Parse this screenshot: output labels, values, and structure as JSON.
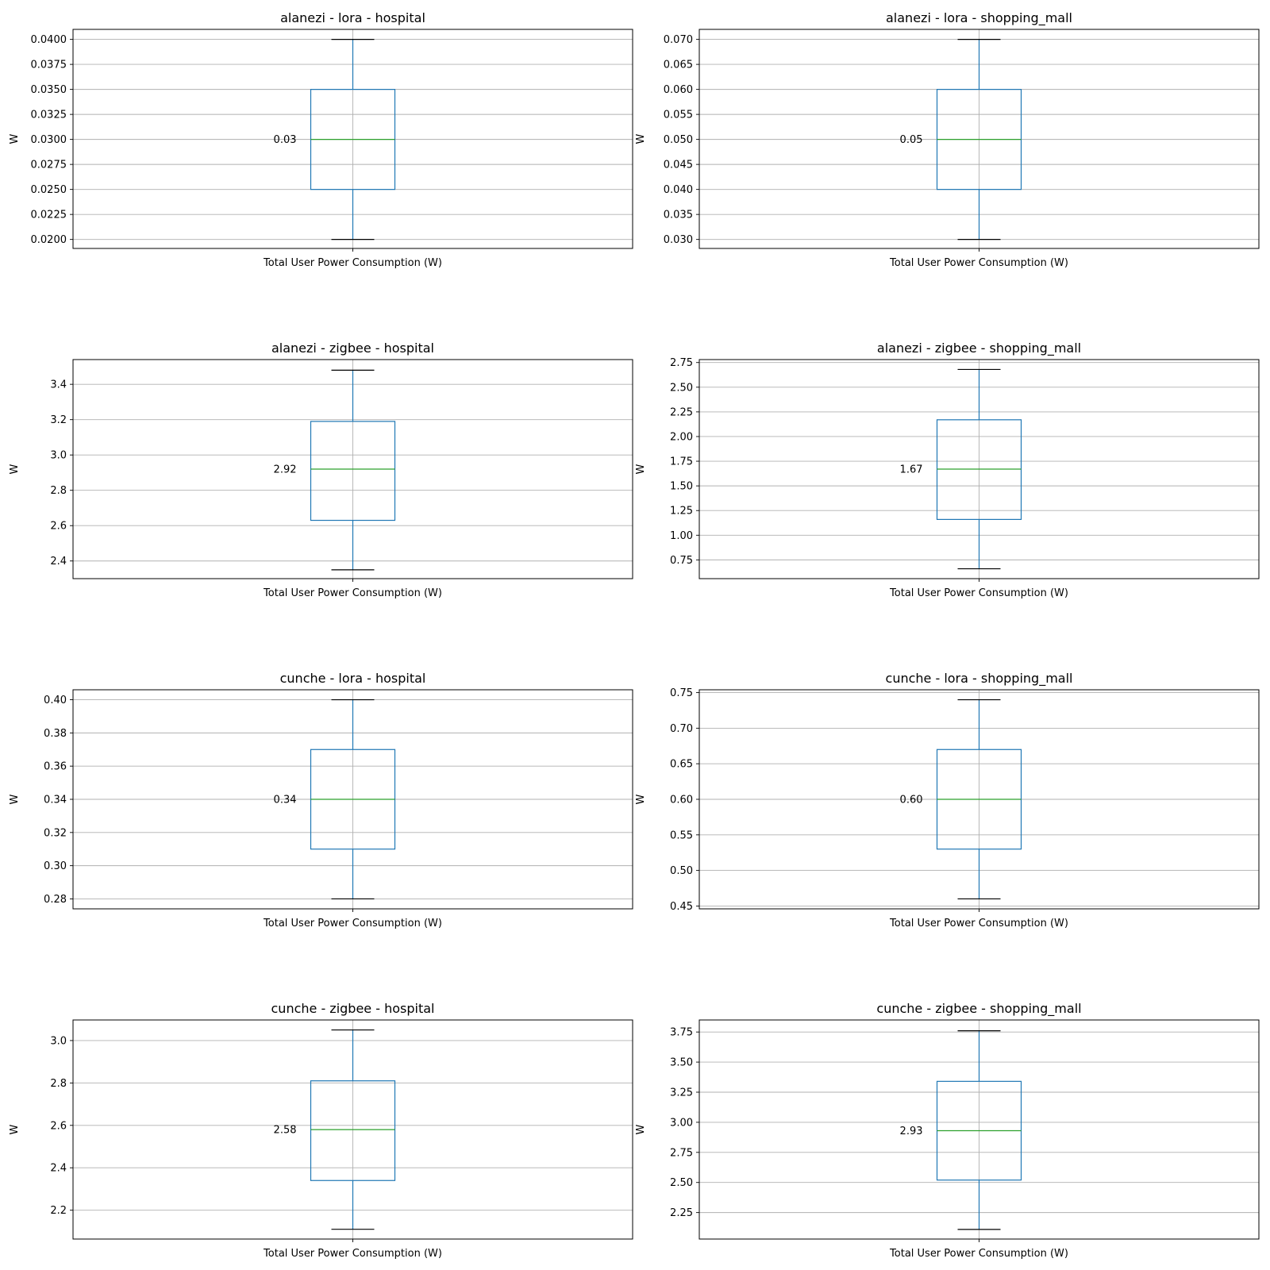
{
  "chart_data": [
    {
      "type": "box",
      "title": "alanezi - lora - hospital",
      "xlabel": "",
      "ylabel": "W",
      "categories": [
        "Total User Power Consumption (W)"
      ],
      "ylim": [
        0.0191,
        0.041
      ],
      "yticks": [
        0.02,
        0.0225,
        0.025,
        0.0275,
        0.03,
        0.0325,
        0.035,
        0.0375,
        0.04
      ],
      "ytick_labels": [
        "0.0200",
        "0.0225",
        "0.0250",
        "0.0275",
        "0.0300",
        "0.0325",
        "0.0350",
        "0.0375",
        "0.0400"
      ],
      "box": {
        "whisker_low": 0.02,
        "q1": 0.025,
        "median": 0.03,
        "q3": 0.035,
        "whisker_high": 0.04
      },
      "median_label": "0.03",
      "grid": true,
      "colors": {
        "box": "#1f77b4",
        "median": "#2ca02c",
        "cap": "#000000",
        "grid": "#b0b0b0"
      }
    },
    {
      "type": "box",
      "title": "alanezi - lora - shopping_mall",
      "xlabel": "",
      "ylabel": "W",
      "categories": [
        "Total User Power Consumption (W)"
      ],
      "ylim": [
        0.0282,
        0.072
      ],
      "yticks": [
        0.03,
        0.035,
        0.04,
        0.045,
        0.05,
        0.055,
        0.06,
        0.065,
        0.07
      ],
      "ytick_labels": [
        "0.030",
        "0.035",
        "0.040",
        "0.045",
        "0.050",
        "0.055",
        "0.060",
        "0.065",
        "0.070"
      ],
      "box": {
        "whisker_low": 0.03,
        "q1": 0.04,
        "median": 0.05,
        "q3": 0.06,
        "whisker_high": 0.07
      },
      "median_label": "0.05",
      "grid": true,
      "colors": {
        "box": "#1f77b4",
        "median": "#2ca02c",
        "cap": "#000000",
        "grid": "#b0b0b0"
      }
    },
    {
      "type": "box",
      "title": "alanezi - zigbee - hospital",
      "xlabel": "",
      "ylabel": "W",
      "categories": [
        "Total User Power Consumption (W)"
      ],
      "ylim": [
        2.3,
        3.54
      ],
      "yticks": [
        2.4,
        2.6,
        2.8,
        3.0,
        3.2,
        3.4
      ],
      "ytick_labels": [
        "2.4",
        "2.6",
        "2.8",
        "3.0",
        "3.2",
        "3.4"
      ],
      "box": {
        "whisker_low": 2.35,
        "q1": 2.63,
        "median": 2.92,
        "q3": 3.19,
        "whisker_high": 3.48
      },
      "median_label": "2.92",
      "grid": true,
      "colors": {
        "box": "#1f77b4",
        "median": "#2ca02c",
        "cap": "#000000",
        "grid": "#b0b0b0"
      }
    },
    {
      "type": "box",
      "title": "alanezi - zigbee - shopping_mall",
      "xlabel": "",
      "ylabel": "W",
      "categories": [
        "Total User Power Consumption (W)"
      ],
      "ylim": [
        0.56,
        2.78
      ],
      "yticks": [
        0.75,
        1.0,
        1.25,
        1.5,
        1.75,
        2.0,
        2.25,
        2.5,
        2.75
      ],
      "ytick_labels": [
        "0.75",
        "1.00",
        "1.25",
        "1.50",
        "1.75",
        "2.00",
        "2.25",
        "2.50",
        "2.75"
      ],
      "box": {
        "whisker_low": 0.66,
        "q1": 1.16,
        "median": 1.67,
        "q3": 2.17,
        "whisker_high": 2.68
      },
      "median_label": "1.67",
      "grid": true,
      "colors": {
        "box": "#1f77b4",
        "median": "#2ca02c",
        "cap": "#000000",
        "grid": "#b0b0b0"
      }
    },
    {
      "type": "box",
      "title": "cunche - lora - hospital",
      "xlabel": "",
      "ylabel": "W",
      "categories": [
        "Total User Power Consumption (W)"
      ],
      "ylim": [
        0.274,
        0.406
      ],
      "yticks": [
        0.28,
        0.3,
        0.32,
        0.34,
        0.36,
        0.38,
        0.4
      ],
      "ytick_labels": [
        "0.28",
        "0.30",
        "0.32",
        "0.34",
        "0.36",
        "0.38",
        "0.40"
      ],
      "box": {
        "whisker_low": 0.28,
        "q1": 0.31,
        "median": 0.34,
        "q3": 0.37,
        "whisker_high": 0.4
      },
      "median_label": "0.34",
      "grid": true,
      "colors": {
        "box": "#1f77b4",
        "median": "#2ca02c",
        "cap": "#000000",
        "grid": "#b0b0b0"
      }
    },
    {
      "type": "box",
      "title": "cunche - lora - shopping_mall",
      "xlabel": "",
      "ylabel": "W",
      "categories": [
        "Total User Power Consumption (W)"
      ],
      "ylim": [
        0.446,
        0.754
      ],
      "yticks": [
        0.45,
        0.5,
        0.55,
        0.6,
        0.65,
        0.7,
        0.75
      ],
      "ytick_labels": [
        "0.45",
        "0.50",
        "0.55",
        "0.60",
        "0.65",
        "0.70",
        "0.75"
      ],
      "box": {
        "whisker_low": 0.46,
        "q1": 0.53,
        "median": 0.6,
        "q3": 0.67,
        "whisker_high": 0.74
      },
      "median_label": "0.60",
      "grid": true,
      "colors": {
        "box": "#1f77b4",
        "median": "#2ca02c",
        "cap": "#000000",
        "grid": "#b0b0b0"
      }
    },
    {
      "type": "box",
      "title": "cunche - zigbee - hospital",
      "xlabel": "",
      "ylabel": "W",
      "categories": [
        "Total User Power Consumption (W)"
      ],
      "ylim": [
        2.064,
        3.097
      ],
      "yticks": [
        2.2,
        2.4,
        2.6,
        2.8,
        3.0
      ],
      "ytick_labels": [
        "2.2",
        "2.4",
        "2.6",
        "2.8",
        "3.0"
      ],
      "box": {
        "whisker_low": 2.11,
        "q1": 2.34,
        "median": 2.58,
        "q3": 2.81,
        "whisker_high": 3.05
      },
      "median_label": "2.58",
      "grid": true,
      "colors": {
        "box": "#1f77b4",
        "median": "#2ca02c",
        "cap": "#000000",
        "grid": "#b0b0b0"
      }
    },
    {
      "type": "box",
      "title": "cunche - zigbee - shopping_mall",
      "xlabel": "",
      "ylabel": "W",
      "categories": [
        "Total User Power Consumption (W)"
      ],
      "ylim": [
        2.03,
        3.85
      ],
      "yticks": [
        2.25,
        2.5,
        2.75,
        3.0,
        3.25,
        3.5,
        3.75
      ],
      "ytick_labels": [
        "2.25",
        "2.50",
        "2.75",
        "3.00",
        "3.25",
        "3.50",
        "3.75"
      ],
      "box": {
        "whisker_low": 2.11,
        "q1": 2.52,
        "median": 2.93,
        "q3": 3.34,
        "whisker_high": 3.76
      },
      "median_label": "2.93",
      "grid": true,
      "colors": {
        "box": "#1f77b4",
        "median": "#2ca02c",
        "cap": "#000000",
        "grid": "#b0b0b0"
      }
    }
  ]
}
